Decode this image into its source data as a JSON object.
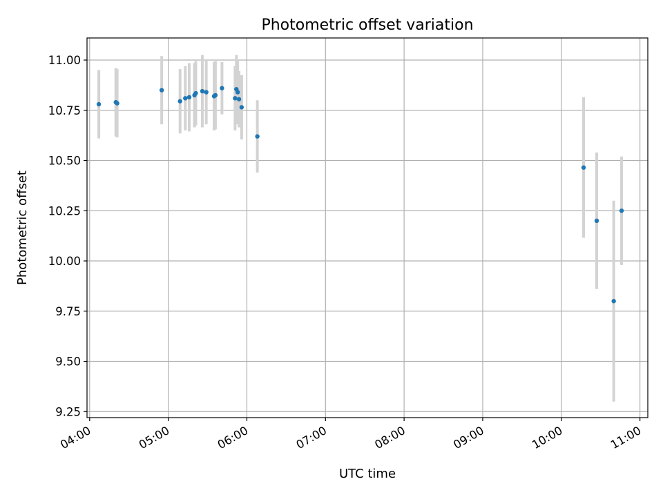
{
  "chart_data": {
    "type": "scatter",
    "title": "Photometric offset variation",
    "xlabel": "UTC time",
    "ylabel": "Photometric offset",
    "x_axis": {
      "ticks": [
        "04:00",
        "05:00",
        "06:00",
        "07:00",
        "08:00",
        "09:00",
        "10:00",
        "11:00"
      ],
      "range": [
        "03:58",
        "11:06"
      ]
    },
    "y_axis": {
      "ticks": [
        "9.25",
        "9.50",
        "9.75",
        "10.00",
        "10.25",
        "10.50",
        "10.75",
        "11.00"
      ],
      "range": [
        9.22,
        11.11
      ]
    },
    "grid": true,
    "marker_color": "#1f77b4",
    "errorbar_color": "#d3d3d3",
    "points": [
      {
        "x": "04:07",
        "y": 10.78,
        "err": 0.17
      },
      {
        "x": "04:20",
        "y": 10.79,
        "err": 0.17
      },
      {
        "x": "04:21",
        "y": 10.785,
        "err": 0.17
      },
      {
        "x": "04:55",
        "y": 10.85,
        "err": 0.17
      },
      {
        "x": "05:09",
        "y": 10.795,
        "err": 0.16
      },
      {
        "x": "05:13",
        "y": 10.81,
        "err": 0.16
      },
      {
        "x": "05:16",
        "y": 10.815,
        "err": 0.17
      },
      {
        "x": "05:20",
        "y": 10.825,
        "err": 0.16
      },
      {
        "x": "05:21",
        "y": 10.835,
        "err": 0.16
      },
      {
        "x": "05:26",
        "y": 10.845,
        "err": 0.18
      },
      {
        "x": "05:29",
        "y": 10.84,
        "err": 0.16
      },
      {
        "x": "05:35",
        "y": 10.82,
        "err": 0.17
      },
      {
        "x": "05:36",
        "y": 10.825,
        "err": 0.17
      },
      {
        "x": "05:41",
        "y": 10.86,
        "err": 0.13
      },
      {
        "x": "05:51",
        "y": 10.81,
        "err": 0.16
      },
      {
        "x": "05:52",
        "y": 10.855,
        "err": 0.17
      },
      {
        "x": "05:53",
        "y": 10.84,
        "err": 0.16
      },
      {
        "x": "05:54",
        "y": 10.805,
        "err": 0.14
      },
      {
        "x": "05:56",
        "y": 10.765,
        "err": 0.16
      },
      {
        "x": "06:08",
        "y": 10.62,
        "err": 0.18
      },
      {
        "x": "10:17",
        "y": 10.465,
        "err": 0.35
      },
      {
        "x": "10:27",
        "y": 10.2,
        "err": 0.34
      },
      {
        "x": "10:40",
        "y": 9.8,
        "err": 0.5
      },
      {
        "x": "10:46",
        "y": 10.25,
        "err": 0.27
      }
    ]
  }
}
